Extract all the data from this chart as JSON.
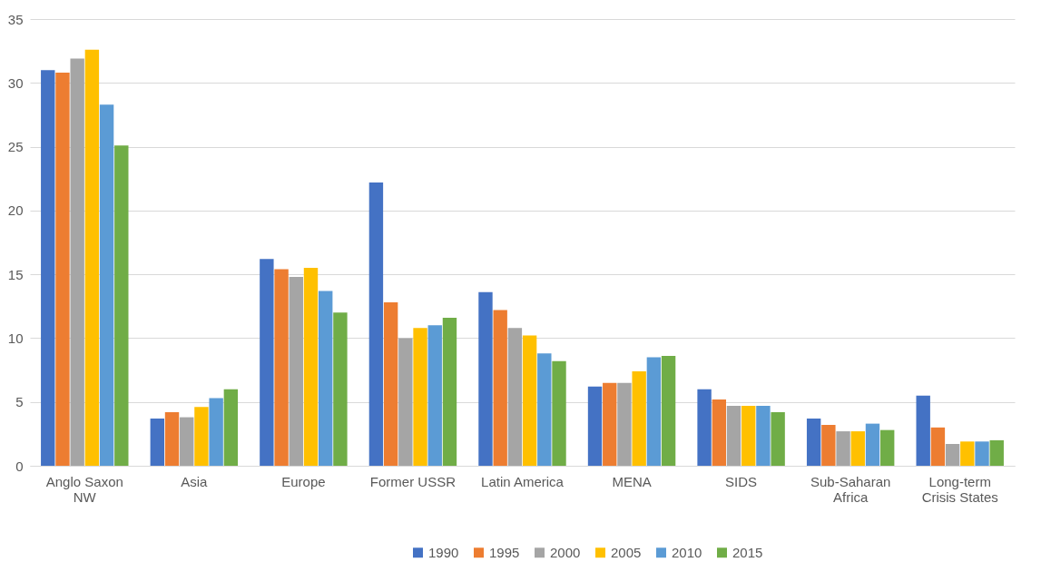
{
  "chart_data": {
    "type": "bar",
    "categories": [
      "Anglo Saxon NW",
      "Asia",
      "Europe",
      "Former USSR",
      "Latin America",
      "MENA",
      "SIDS",
      "Sub-Saharan Africa",
      "Long-term Crisis States"
    ],
    "series": [
      {
        "name": "1990",
        "color": "#4472c4",
        "values": [
          31.0,
          3.7,
          16.2,
          22.2,
          13.6,
          6.2,
          6.0,
          3.7,
          5.5
        ]
      },
      {
        "name": "1995",
        "color": "#ed7d31",
        "values": [
          30.8,
          4.2,
          15.4,
          12.8,
          12.2,
          6.5,
          5.2,
          3.2,
          3.0
        ]
      },
      {
        "name": "2000",
        "color": "#a5a5a5",
        "values": [
          31.9,
          3.8,
          14.8,
          10.0,
          10.8,
          6.5,
          4.7,
          2.7,
          1.7
        ]
      },
      {
        "name": "2005",
        "color": "#ffc000",
        "values": [
          32.6,
          4.6,
          15.5,
          10.8,
          10.2,
          7.4,
          4.7,
          2.7,
          1.9
        ]
      },
      {
        "name": "2010",
        "color": "#5b9bd5",
        "values": [
          28.3,
          5.3,
          13.7,
          11.0,
          8.8,
          8.5,
          4.7,
          3.3,
          1.9
        ]
      },
      {
        "name": "2015",
        "color": "#70ad47",
        "values": [
          25.1,
          6.0,
          12.0,
          11.6,
          8.2,
          8.6,
          4.2,
          2.8,
          2.0
        ]
      }
    ],
    "ylim": [
      0,
      35
    ],
    "yticks": [
      0,
      5,
      10,
      15,
      20,
      25,
      30,
      35
    ],
    "grid": "y",
    "legend": "bottom"
  }
}
